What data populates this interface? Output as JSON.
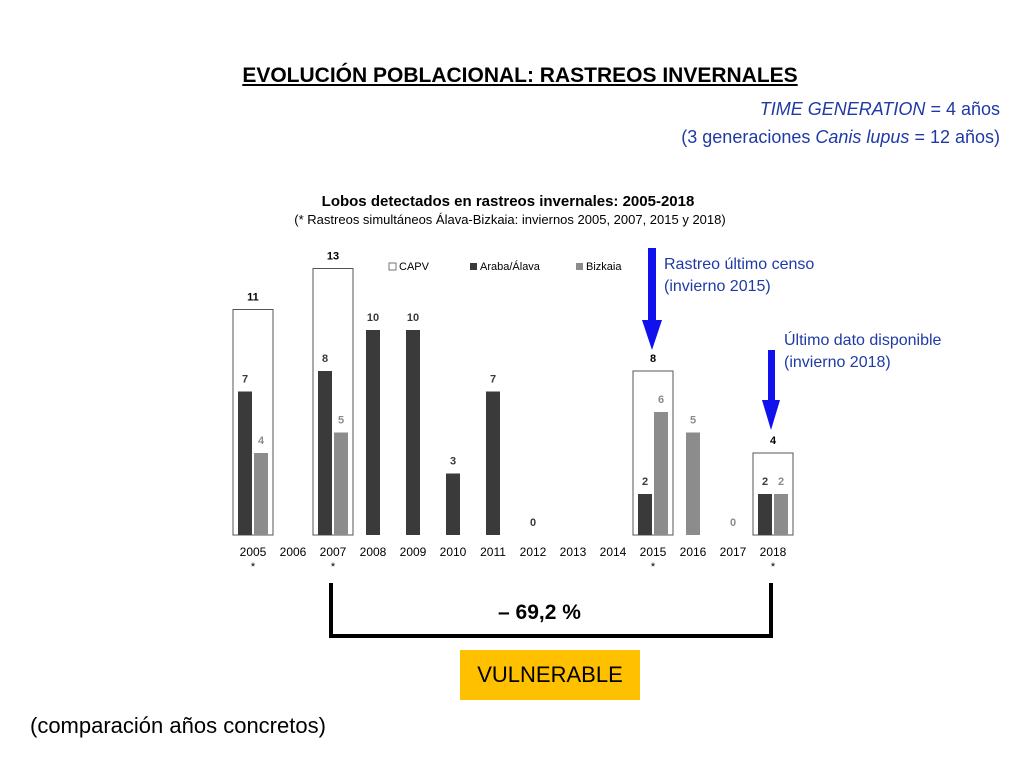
{
  "page": {
    "title": "EVOLUCIÓN POBLACIONAL: RASTREOS INVERNALES",
    "time_generation": {
      "label": "TIME GENERATION",
      "value": " = 4 años",
      "line2_prefix": "(3 generaciones ",
      "species": "Canis lupus",
      "line2_suffix": " = 12 años)"
    },
    "annotations": {
      "last_census": [
        "Rastreo último censo",
        "(invierno 2015)"
      ],
      "last_data": [
        "Último dato disponible",
        "(invierno 2018)"
      ]
    },
    "change_label": "– 69,2 %",
    "status": "VULNERABLE",
    "footnote": "(comparación años concretos)"
  },
  "colors": {
    "araba": "#3a3a3a",
    "bizkaia": "#8c8c8c",
    "capv_fill": "#ffffff",
    "capv_stroke": "#555555",
    "annotation_blue": "#1f3aa6",
    "arrow_blue": "#1111ee",
    "status_bg": "#ffc000"
  },
  "chart_data": {
    "type": "bar",
    "title": "Lobos detectados en rastreos invernales: 2005-2018",
    "subtitle": "(* Rastreos simultáneos Álava-Bizkaia: inviernos 2005, 2007, 2015 y 2018)",
    "categories": [
      "2005",
      "2006",
      "2007",
      "2008",
      "2009",
      "2010",
      "2011",
      "2012",
      "2013",
      "2014",
      "2015",
      "2016",
      "2017",
      "2018"
    ],
    "starred": [
      "2005",
      "2007",
      "2015",
      "2018"
    ],
    "legend": [
      "CAPV",
      "Araba/Álava",
      "Bizkaia"
    ],
    "legend_position": "top",
    "series": [
      {
        "name": "CAPV",
        "values": [
          11,
          null,
          13,
          null,
          null,
          null,
          null,
          null,
          null,
          null,
          8,
          null,
          null,
          4
        ]
      },
      {
        "name": "Araba/Álava",
        "values": [
          7,
          null,
          8,
          10,
          10,
          3,
          7,
          0,
          null,
          null,
          2,
          null,
          null,
          2
        ]
      },
      {
        "name": "Bizkaia",
        "values": [
          4,
          null,
          5,
          null,
          null,
          null,
          null,
          null,
          null,
          null,
          6,
          5,
          0,
          2
        ]
      }
    ],
    "ylim": [
      0,
      14
    ],
    "grid": false
  }
}
